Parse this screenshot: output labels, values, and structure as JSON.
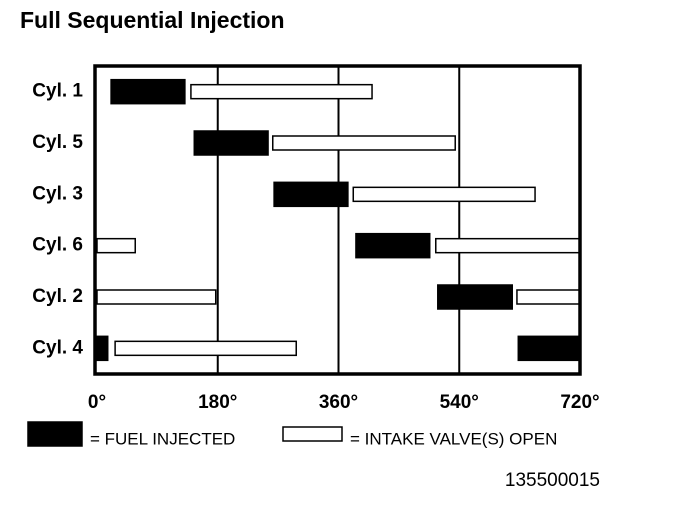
{
  "chart_data": {
    "type": "timeline",
    "title": "Full Sequential Injection",
    "categories": [
      "Cyl. 1",
      "Cyl. 5",
      "Cyl. 3",
      "Cyl. 6",
      "Cyl. 2",
      "Cyl. 4"
    ],
    "series": [
      {
        "name": "= FUEL INJECTED",
        "color": "#000000",
        "values": [
          [
            [
              21,
              131
            ]
          ],
          [
            [
              145,
              255
            ]
          ],
          [
            [
              264,
              374
            ]
          ],
          [
            [
              386,
              496
            ]
          ],
          [
            [
              508,
              619
            ]
          ],
          [
            [
              628,
              720
            ],
            [
              0,
              16
            ]
          ]
        ]
      },
      {
        "name": "= INTAKE VALVE(S) OPEN",
        "color": "#ffffff",
        "values": [
          [
            [
              140,
              410
            ]
          ],
          [
            [
              262,
              534
            ]
          ],
          [
            [
              382,
              653
            ]
          ],
          [
            [
              505,
              720
            ],
            [
              0,
              57
            ]
          ],
          [
            [
              626,
              720
            ],
            [
              0,
              177
            ]
          ],
          [
            [
              27,
              297
            ]
          ]
        ]
      }
    ],
    "xlim": [
      0,
      720
    ],
    "xticks": [
      {
        "value": 0,
        "label": "0°"
      },
      {
        "value": 180,
        "label": "180°"
      },
      {
        "value": 360,
        "label": "360°"
      },
      {
        "value": 540,
        "label": "540°"
      },
      {
        "value": 720,
        "label": "720°"
      }
    ],
    "grid": true,
    "footnote": "135500015"
  }
}
